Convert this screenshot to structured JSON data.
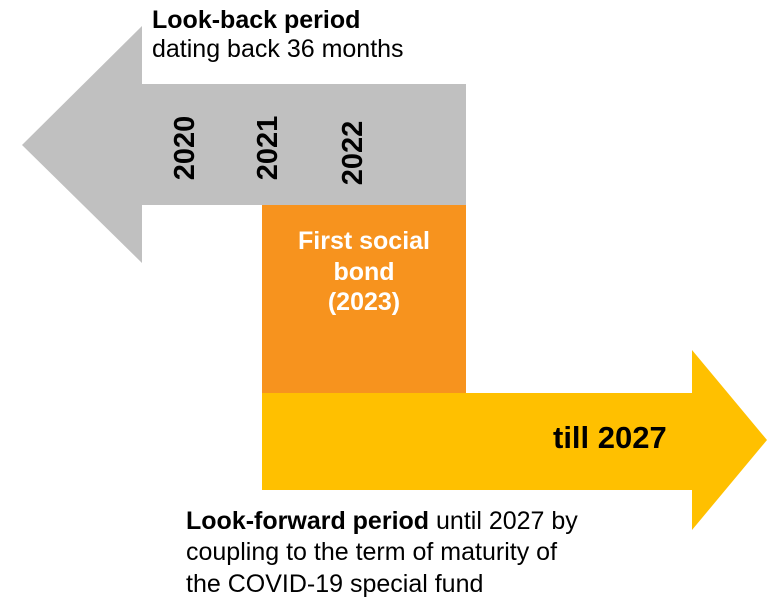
{
  "lookback": {
    "title": "Look-back period",
    "subtitle": "dating back 36 months"
  },
  "years": [
    "2020",
    "2021",
    "2022"
  ],
  "bond": {
    "line1": "First social",
    "line2": "bond",
    "line3": "(2023)"
  },
  "forward_arrow_label": "till 2027",
  "lookforward": {
    "title": "Look-forward period",
    "line1_rest": " until 2027 by",
    "line2": "coupling to the term of maturity of",
    "line3": "the COVID-19 special fund"
  },
  "colors": {
    "back_arrow": "#c0c0c0",
    "bond_box": "#f7931e",
    "forward_arrow": "#ffc000",
    "bond_text": "#ffffff",
    "text": "#000000"
  }
}
